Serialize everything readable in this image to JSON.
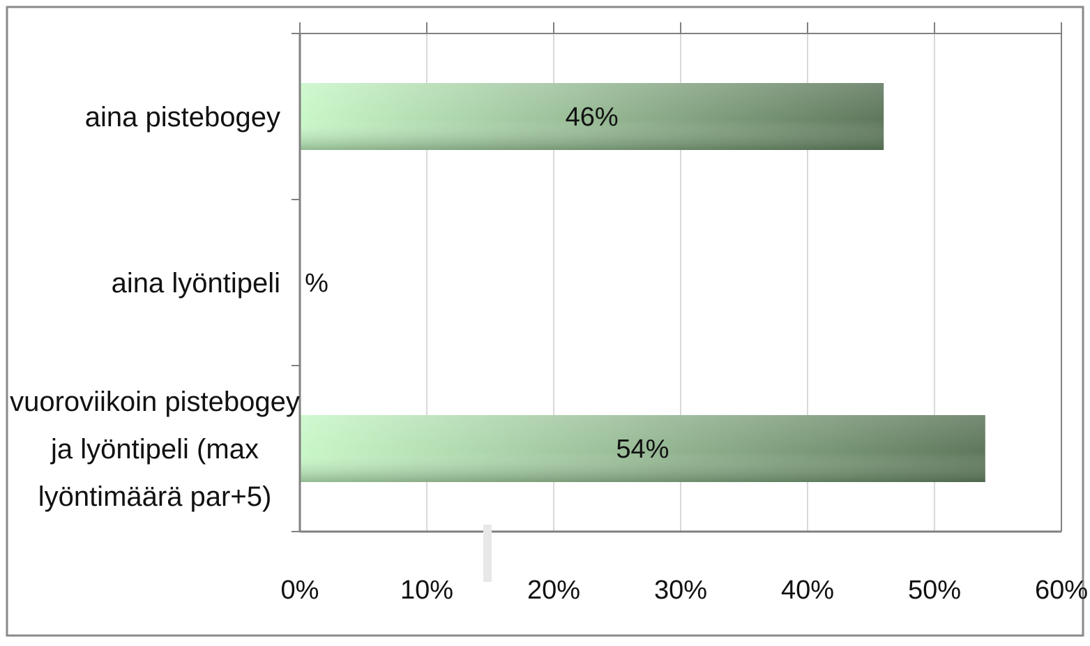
{
  "chart_data": {
    "type": "bar",
    "orientation": "horizontal",
    "categories": [
      [
        "aina pistebogey"
      ],
      [
        "aina lyöntipeli"
      ],
      [
        "vuoroviikoin pistebogey",
        "ja lyöntipeli (max",
        "lyöntimäärä par+5)"
      ]
    ],
    "values": [
      46,
      0,
      54
    ],
    "data_labels": [
      "46%",
      "%",
      "54%"
    ],
    "xlim": [
      0,
      60
    ],
    "x_ticks": [
      0,
      10,
      20,
      30,
      40,
      50,
      60
    ],
    "x_tick_labels": [
      "0%",
      "10%",
      "20%",
      "30%",
      "40%",
      "50%",
      "60%"
    ],
    "x_axis_position": "bottom",
    "grid": "vertical",
    "legend": "none",
    "bar_gradient": [
      "#c9f7c8",
      "#9cc09a",
      "#5e775c"
    ],
    "colors": {
      "frame": "#8a8a8a",
      "axis": "#808080",
      "grid": "#d9d9d9"
    }
  }
}
